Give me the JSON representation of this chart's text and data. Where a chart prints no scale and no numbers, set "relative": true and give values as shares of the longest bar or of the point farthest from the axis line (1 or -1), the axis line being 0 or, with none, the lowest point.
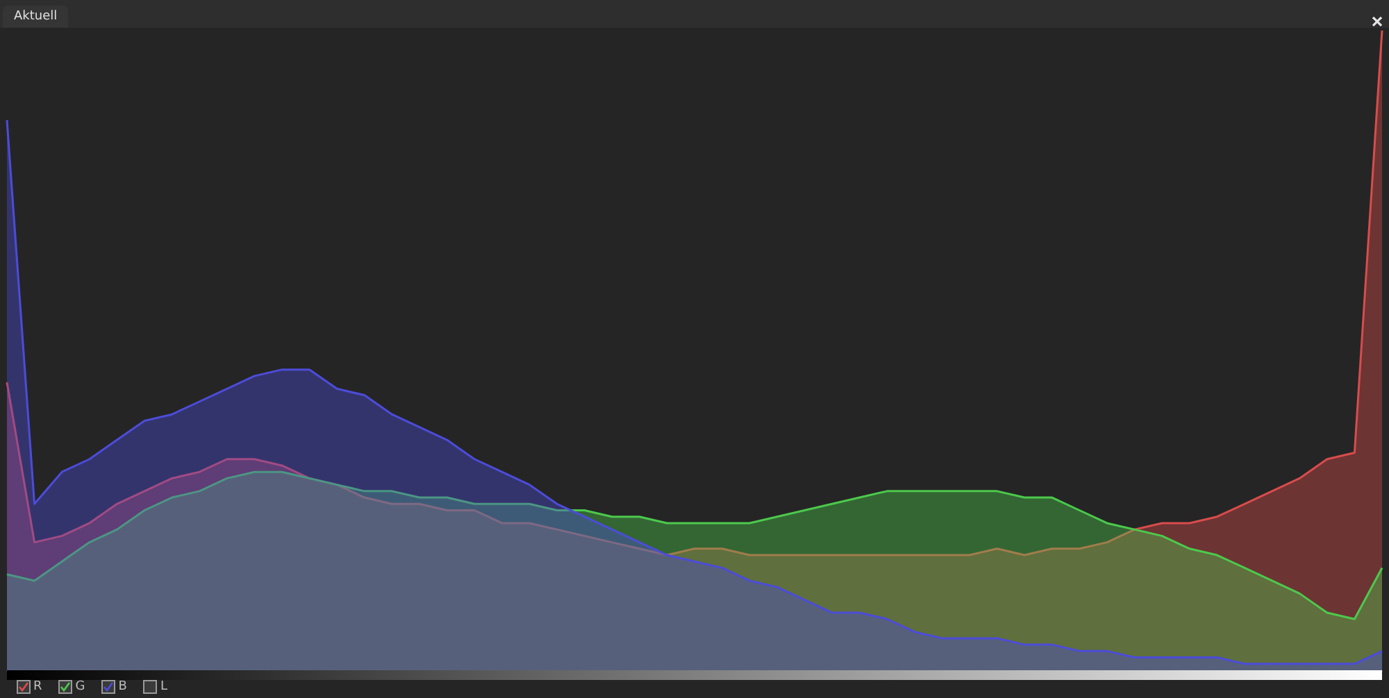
{
  "chart_data": {
    "type": "area",
    "title": "Aktuell",
    "relative": true,
    "legend": "bottom left",
    "marker": "none",
    "line_style": "solid",
    "categories": [
      null,
      null,
      null,
      null,
      null,
      null,
      null,
      null,
      null,
      null,
      null,
      null,
      null,
      null,
      null,
      null,
      null,
      null,
      null,
      null,
      null,
      null,
      null,
      null,
      null,
      null,
      null,
      null,
      null,
      null,
      null,
      null,
      null,
      null,
      null,
      null,
      null,
      null,
      null,
      null,
      null,
      null,
      null,
      null,
      null,
      null,
      null,
      null,
      null,
      null,
      null
    ],
    "series": [
      {
        "name": "R",
        "color": "#d94c4c",
        "values": [
          0.45,
          0.2,
          0.21,
          0.23,
          0.26,
          0.28,
          0.3,
          0.31,
          0.33,
          0.33,
          0.32,
          0.3,
          0.29,
          0.27,
          0.26,
          0.26,
          0.25,
          0.25,
          0.23,
          0.23,
          0.22,
          0.21,
          0.2,
          0.19,
          0.18,
          0.19,
          0.19,
          0.18,
          0.18,
          0.18,
          0.18,
          0.18,
          0.18,
          0.18,
          0.18,
          0.18,
          0.19,
          0.18,
          0.19,
          0.19,
          0.2,
          0.22,
          0.23,
          0.23,
          0.24,
          0.26,
          0.28,
          0.3,
          0.33,
          0.34,
          1
        ]
      },
      {
        "name": "G",
        "color": "#4cc94c",
        "values": [
          0.15,
          0.14,
          0.17,
          0.2,
          0.22,
          0.25,
          0.27,
          0.28,
          0.3,
          0.31,
          0.31,
          0.3,
          0.29,
          0.28,
          0.28,
          0.27,
          0.27,
          0.26,
          0.26,
          0.26,
          0.25,
          0.25,
          0.24,
          0.24,
          0.23,
          0.23,
          0.23,
          0.23,
          0.24,
          0.25,
          0.26,
          0.27,
          0.28,
          0.28,
          0.28,
          0.28,
          0.28,
          0.27,
          0.27,
          0.25,
          0.23,
          0.22,
          0.21,
          0.19,
          0.18,
          0.16,
          0.14,
          0.12,
          0.09,
          0.08,
          0.16
        ]
      },
      {
        "name": "B",
        "color": "#4c4cd9",
        "values": [
          0.86,
          0.26,
          0.31,
          0.33,
          0.36,
          0.39,
          0.4,
          0.42,
          0.44,
          0.46,
          0.47,
          0.47,
          0.44,
          0.43,
          0.4,
          0.38,
          0.36,
          0.33,
          0.31,
          0.29,
          0.26,
          0.24,
          0.22,
          0.2,
          0.18,
          0.17,
          0.16,
          0.14,
          0.13,
          0.11,
          0.09,
          0.09,
          0.08,
          0.06,
          0.05,
          0.05,
          0.05,
          0.04,
          0.04,
          0.03,
          0.03,
          0.02,
          0.02,
          0.02,
          0.02,
          0.01,
          0.01,
          0.01,
          0.01,
          0.01,
          0.03
        ]
      }
    ],
    "annotations": [
      "L"
    ]
  }
}
